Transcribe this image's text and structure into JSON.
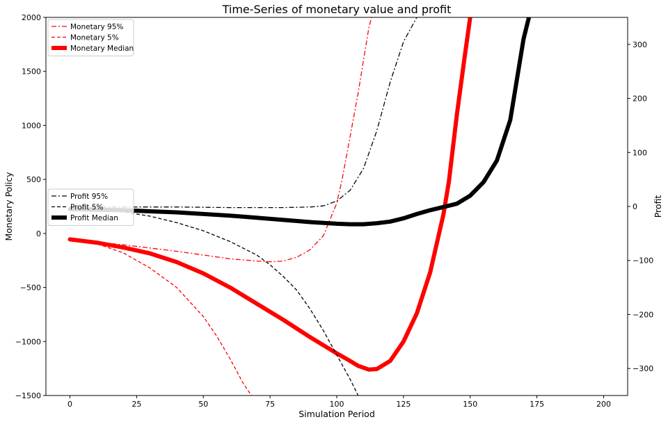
{
  "chart_data": {
    "type": "line",
    "title": "Time-Series of monetary value and profit",
    "xlabel": "Simulation Period",
    "ylabel_left": "Monetary Policy",
    "ylabel_right": "Profit",
    "xlim": [
      -9,
      209
    ],
    "ylim_left": [
      -1500,
      2000
    ],
    "ylim_right": [
      -350,
      350
    ],
    "xticks": [
      0,
      25,
      50,
      75,
      100,
      125,
      150,
      175,
      200
    ],
    "xtick_labels": [
      "0",
      "25",
      "50",
      "75",
      "100",
      "125",
      "150",
      "175",
      "200"
    ],
    "yticks_left": [
      -1500,
      -1000,
      -500,
      0,
      500,
      1000,
      1500,
      2000
    ],
    "ytick_labels_left": [
      "−1500",
      "−1000",
      "−500",
      "0",
      "500",
      "1000",
      "1500",
      "2000"
    ],
    "yticks_right": [
      -300,
      -200,
      -100,
      0,
      100,
      200,
      300
    ],
    "ytick_labels_right": [
      "−300",
      "−200",
      "−100",
      "0",
      "100",
      "200",
      "300"
    ],
    "grid": false,
    "legend_left_placement": "upper left",
    "legend_right_placement": "center left",
    "series": [
      {
        "name": "Monetary 95%",
        "axis": "left",
        "color": "#ff0000",
        "style": "dashdot",
        "width": 1.3,
        "x": [
          0,
          10,
          20,
          30,
          40,
          50,
          60,
          70,
          75,
          80,
          85,
          90,
          95,
          100,
          102,
          105,
          108,
          110,
          112,
          113
        ],
        "y": [
          -55,
          -80,
          -105,
          -135,
          -165,
          -200,
          -235,
          -255,
          -262,
          -255,
          -220,
          -150,
          -20,
          280,
          500,
          900,
          1300,
          1600,
          1900,
          2000
        ]
      },
      {
        "name": "Monetary 5%",
        "axis": "left",
        "color": "#ff0000",
        "style": "dashed",
        "width": 1.3,
        "x": [
          0,
          10,
          20,
          30,
          40,
          50,
          55,
          60,
          65,
          68
        ],
        "y": [
          -55,
          -95,
          -180,
          -320,
          -500,
          -770,
          -950,
          -1160,
          -1390,
          -1500
        ]
      },
      {
        "name": "Monetary Median",
        "axis": "left",
        "color": "#ff0000",
        "style": "solid",
        "width": 6,
        "x": [
          0,
          10,
          20,
          30,
          40,
          50,
          60,
          70,
          80,
          90,
          100,
          105,
          108,
          112,
          115,
          120,
          125,
          130,
          135,
          140,
          142,
          145,
          148,
          150
        ],
        "y": [
          -55,
          -85,
          -130,
          -185,
          -265,
          -370,
          -500,
          -650,
          -800,
          -960,
          -1110,
          -1180,
          -1225,
          -1260,
          -1255,
          -1180,
          -1000,
          -740,
          -360,
          180,
          480,
          1100,
          1650,
          2000
        ]
      },
      {
        "name": "Profit 95%",
        "axis": "right",
        "color": "#000000",
        "style": "dashdot",
        "width": 1.3,
        "x": [
          0,
          20,
          40,
          60,
          80,
          90,
          95,
          100,
          105,
          110,
          115,
          120,
          125,
          130
        ],
        "y": [
          -1,
          -1,
          -1,
          -2,
          -2,
          -1,
          1,
          10,
          30,
          70,
          140,
          230,
          305,
          350
        ]
      },
      {
        "name": "Profit 5%",
        "axis": "right",
        "color": "#000000",
        "style": "dashed",
        "width": 1.3,
        "x": [
          0,
          10,
          20,
          30,
          40,
          50,
          60,
          70,
          75,
          80,
          85,
          90,
          95,
          100,
          105,
          108
        ],
        "y": [
          -2,
          -5,
          -10,
          -18,
          -30,
          -45,
          -65,
          -90,
          -108,
          -130,
          -155,
          -190,
          -230,
          -275,
          -320,
          -350
        ]
      },
      {
        "name": "Profit Median",
        "axis": "right",
        "color": "#000000",
        "style": "solid",
        "width": 6,
        "x": [
          0,
          10,
          20,
          30,
          40,
          50,
          60,
          70,
          80,
          90,
          100,
          105,
          110,
          115,
          120,
          125,
          130,
          135,
          140,
          145,
          150,
          155,
          160,
          165,
          170,
          172
        ],
        "y": [
          -5,
          -6,
          -7,
          -9,
          -11,
          -14,
          -17,
          -21,
          -25,
          -29,
          -32,
          -33,
          -33,
          -31,
          -28,
          -22,
          -14,
          -7,
          -1,
          5,
          20,
          45,
          85,
          160,
          310,
          350
        ]
      }
    ],
    "legend_left": [
      {
        "label": "Monetary 95%",
        "color": "#ff0000",
        "style": "dashdot",
        "width": 1.3
      },
      {
        "label": "Monetary 5%",
        "color": "#ff0000",
        "style": "dashed",
        "width": 1.3
      },
      {
        "label": "Monetary Median",
        "color": "#ff0000",
        "style": "solid",
        "width": 6
      }
    ],
    "legend_right": [
      {
        "label": "Profit 95%",
        "color": "#000000",
        "style": "dashdot",
        "width": 1.3
      },
      {
        "label": "Profit 5%",
        "color": "#000000",
        "style": "dashed",
        "width": 1.3
      },
      {
        "label": "Profit Median",
        "color": "#000000",
        "style": "solid",
        "width": 6
      }
    ]
  }
}
